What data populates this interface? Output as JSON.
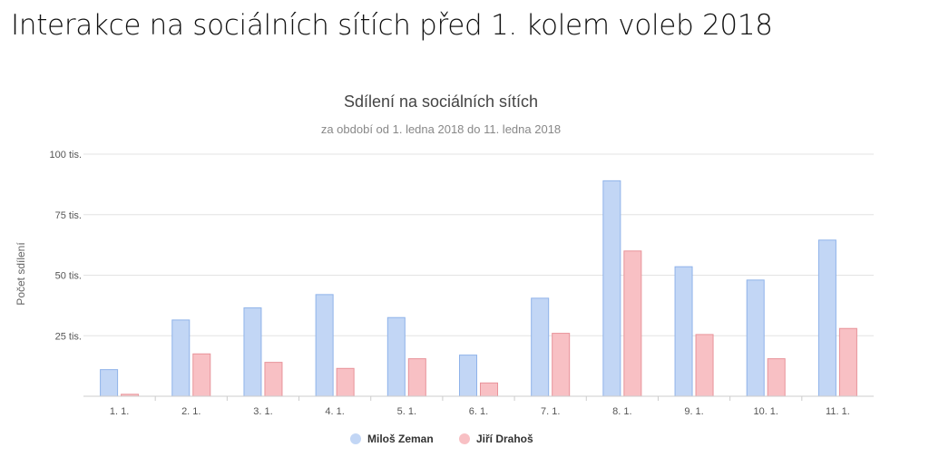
{
  "slide": {
    "title": "Interakce na sociálních sítích před 1. kolem voleb 2018"
  },
  "chart_data": {
    "type": "bar",
    "title": "Sdílení na sociálních sítích",
    "subtitle": "za období od 1. ledna 2018 do 11. ledna 2018",
    "xlabel": "",
    "ylabel": "Počet sdílení",
    "ylim": [
      0,
      100000
    ],
    "yticks": [
      {
        "value": 25000,
        "label": "25 tis."
      },
      {
        "value": 50000,
        "label": "50 tis."
      },
      {
        "value": 75000,
        "label": "75 tis."
      },
      {
        "value": 100000,
        "label": "100 tis."
      }
    ],
    "grid": true,
    "legend_position": "bottom",
    "categories": [
      "1. 1.",
      "2. 1.",
      "3. 1.",
      "4. 1.",
      "5. 1.",
      "6. 1.",
      "7. 1.",
      "8. 1.",
      "9. 1.",
      "10. 1.",
      "11. 1."
    ],
    "series": [
      {
        "name": "Miloš Zeman",
        "color": "#c2d6f5",
        "stroke": "#8fb3ea",
        "values": [
          11000,
          31500,
          36500,
          42000,
          32500,
          17000,
          40500,
          89000,
          53500,
          48000,
          64500
        ]
      },
      {
        "name": "Jiří Drahoš",
        "color": "#f8c0c4",
        "stroke": "#e8939a",
        "values": [
          800,
          17500,
          14000,
          11500,
          15500,
          5500,
          26000,
          60000,
          25500,
          15500,
          28000
        ]
      }
    ]
  }
}
